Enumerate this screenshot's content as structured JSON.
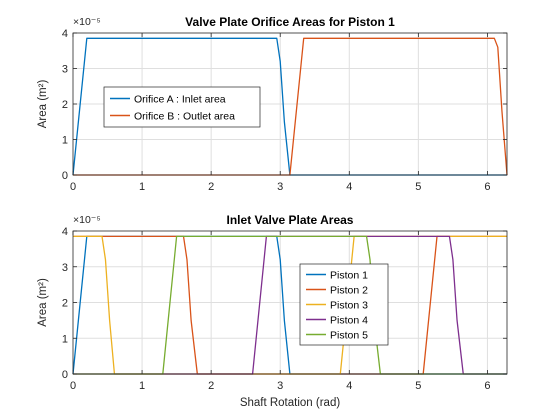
{
  "colors": {
    "background": "#ffffff",
    "axis": "#262626",
    "grid": "#dfdfdf",
    "series": [
      "#0072BD",
      "#D95319",
      "#EDB120",
      "#7E2F8E",
      "#77AC30"
    ]
  },
  "chart_data": [
    {
      "type": "line",
      "title": "Valve Plate Orifice Areas for Piston 1",
      "xlabel": "",
      "ylabel": "Area (m²)",
      "y_exponent": "×10⁻⁵",
      "xlim": [
        0,
        6.2832
      ],
      "ylim": [
        0,
        4
      ],
      "xticks": [
        0,
        1,
        2,
        3,
        4,
        5,
        6
      ],
      "yticks": [
        0,
        1,
        2,
        3,
        4
      ],
      "xtick_labels": [
        "0",
        "1",
        "2",
        "3",
        "4",
        "5",
        "6"
      ],
      "ytick_labels": [
        "0",
        "1",
        "2",
        "3",
        "4"
      ],
      "grid": true,
      "legend_position": "left-center",
      "series": [
        {
          "name": "Orifice A : Inlet area",
          "x": [
            0,
            0.2,
            2.95,
            3.0,
            3.06,
            3.14,
            6.2832
          ],
          "y": [
            0,
            3.85,
            3.85,
            3.2,
            1.5,
            0,
            0
          ]
        },
        {
          "name": "Orifice B : Outlet area",
          "x": [
            0,
            3.14,
            3.34,
            6.1,
            6.15,
            6.21,
            6.2832
          ],
          "y": [
            0,
            0,
            3.85,
            3.85,
            3.6,
            1.8,
            0
          ]
        }
      ]
    },
    {
      "type": "line",
      "title": "Inlet Valve Plate Areas",
      "xlabel": "Shaft Rotation (rad)",
      "ylabel": "Area (m²)",
      "y_exponent": "×10⁻⁵",
      "xlim": [
        0,
        6.2832
      ],
      "ylim": [
        0,
        4
      ],
      "xticks": [
        0,
        1,
        2,
        3,
        4,
        5,
        6
      ],
      "yticks": [
        0,
        1,
        2,
        3,
        4
      ],
      "xtick_labels": [
        "0",
        "1",
        "2",
        "3",
        "4",
        "5",
        "6"
      ],
      "ytick_labels": [
        "0",
        "1",
        "2",
        "3",
        "4"
      ],
      "grid": true,
      "legend_position": "center",
      "series": [
        {
          "name": "Piston 1",
          "x": [
            0,
            0.2,
            2.95,
            3.0,
            3.06,
            3.14,
            6.2832
          ],
          "y": [
            0,
            3.85,
            3.85,
            3.2,
            1.5,
            0,
            0
          ]
        },
        {
          "name": "Piston 2",
          "x": [
            0,
            1.6,
            1.65,
            1.71,
            1.8,
            5.07,
            5.27,
            6.2832
          ],
          "y": [
            3.85,
            3.85,
            3.2,
            1.5,
            0,
            0,
            3.85,
            3.85
          ]
        },
        {
          "name": "Piston 3",
          "x": [
            0,
            0.42,
            0.47,
            0.53,
            0.6,
            3.87,
            4.07,
            6.2832
          ],
          "y": [
            3.85,
            3.85,
            3.2,
            1.5,
            0,
            0,
            3.85,
            3.85
          ]
        },
        {
          "name": "Piston 4",
          "x": [
            0,
            2.6,
            2.8,
            5.45,
            5.5,
            5.56,
            5.65,
            6.2832
          ],
          "y": [
            0,
            0,
            3.85,
            3.85,
            3.2,
            1.5,
            0,
            0
          ]
        },
        {
          "name": "Piston 5",
          "x": [
            0,
            1.3,
            1.5,
            4.25,
            4.3,
            4.36,
            4.45,
            6.2832
          ],
          "y": [
            0,
            0,
            3.85,
            3.85,
            3.2,
            1.5,
            0,
            0
          ]
        }
      ]
    }
  ]
}
